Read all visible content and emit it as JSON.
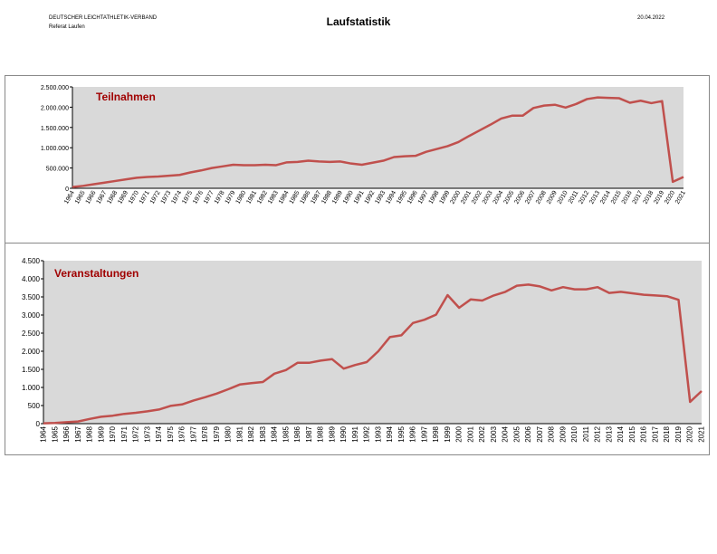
{
  "header": {
    "org": "DEUTSCHER LEICHTATHLETIK-VERBAND",
    "dept": "Referat Laufen",
    "title": "Laufstatistik",
    "date": "20.04.2022"
  },
  "chart_data": [
    {
      "type": "line",
      "title": "Teilnahmen",
      "color": "#c0504d",
      "categories": [
        "1964",
        "1965",
        "1966",
        "1967",
        "1968",
        "1969",
        "1970",
        "1971",
        "1972",
        "1973",
        "1974",
        "1975",
        "1976",
        "1977",
        "1978",
        "1979",
        "1980",
        "1981",
        "1982",
        "1983",
        "1984",
        "1985",
        "1986",
        "1987",
        "1988",
        "1989",
        "1990",
        "1991",
        "1992",
        "1993",
        "1994",
        "1995",
        "1996",
        "1997",
        "1998",
        "1999",
        "2000",
        "2001",
        "2002",
        "2003",
        "2004",
        "2005",
        "2006",
        "2007",
        "2008",
        "2009",
        "2010",
        "2011",
        "2012",
        "2013",
        "2014",
        "2015",
        "2016",
        "2017",
        "2018",
        "2019",
        "2020",
        "2021"
      ],
      "values": [
        30000,
        60000,
        100000,
        140000,
        180000,
        220000,
        260000,
        280000,
        290000,
        310000,
        330000,
        390000,
        440000,
        500000,
        540000,
        580000,
        570000,
        570000,
        580000,
        570000,
        640000,
        650000,
        680000,
        660000,
        650000,
        660000,
        610000,
        580000,
        630000,
        680000,
        770000,
        790000,
        800000,
        900000,
        970000,
        1040000,
        1140000,
        1290000,
        1430000,
        1570000,
        1720000,
        1790000,
        1790000,
        1980000,
        2040000,
        2060000,
        1990000,
        2080000,
        2200000,
        2240000,
        2230000,
        2220000,
        2110000,
        2160000,
        2100000,
        2150000,
        160000,
        280000
      ],
      "ylim": [
        0,
        2500000
      ],
      "yticks": [
        0,
        {
          "value": 500000,
          "label": "500.000"
        },
        {
          "value": 1000000,
          "label": "1.000.000"
        },
        {
          "value": 1500000,
          "label": "1.500.000"
        },
        {
          "value": 2000000,
          "label": "2.000.000"
        },
        {
          "value": 2500000,
          "label": "2.500.000"
        }
      ]
    },
    {
      "type": "line",
      "title": "Veranstaltungen",
      "color": "#c0504d",
      "categories": [
        "1964",
        "1965",
        "1966",
        "1967",
        "1968",
        "1969",
        "1970",
        "1971",
        "1972",
        "1973",
        "1974",
        "1975",
        "1976",
        "1977",
        "1978",
        "1979",
        "1980",
        "1981",
        "1982",
        "1983",
        "1984",
        "1985",
        "1986",
        "1987",
        "1988",
        "1989",
        "1990",
        "1991",
        "1992",
        "1993",
        "1994",
        "1995",
        "1996",
        "1997",
        "1998",
        "1999",
        "2000",
        "2001",
        "2002",
        "2003",
        "2004",
        "2005",
        "2006",
        "2007",
        "2008",
        "2009",
        "2010",
        "2011",
        "2012",
        "2013",
        "2014",
        "2015",
        "2016",
        "2017",
        "2018",
        "2019",
        "2020",
        "2021"
      ],
      "values": [
        10,
        20,
        40,
        60,
        130,
        190,
        220,
        270,
        300,
        340,
        390,
        490,
        530,
        640,
        730,
        830,
        950,
        1080,
        1120,
        1150,
        1380,
        1480,
        1680,
        1680,
        1740,
        1780,
        1520,
        1620,
        1700,
        2000,
        2390,
        2440,
        2780,
        2870,
        3010,
        3550,
        3200,
        3430,
        3400,
        3540,
        3640,
        3810,
        3840,
        3790,
        3680,
        3770,
        3710,
        3710,
        3770,
        3610,
        3640,
        3600,
        3560,
        3540,
        3520,
        3420,
        600,
        900
      ],
      "ylim": [
        0,
        4500
      ],
      "yticks": [
        0,
        500,
        {
          "value": 1000,
          "label": "1.000"
        },
        {
          "value": 1500,
          "label": "1.500"
        },
        {
          "value": 2000,
          "label": "2.000"
        },
        {
          "value": 2500,
          "label": "2.500"
        },
        {
          "value": 3000,
          "label": "3.000"
        },
        {
          "value": 3500,
          "label": "3.500"
        },
        {
          "value": 4000,
          "label": "4.000"
        },
        {
          "value": 4500,
          "label": "4.500"
        }
      ]
    }
  ]
}
